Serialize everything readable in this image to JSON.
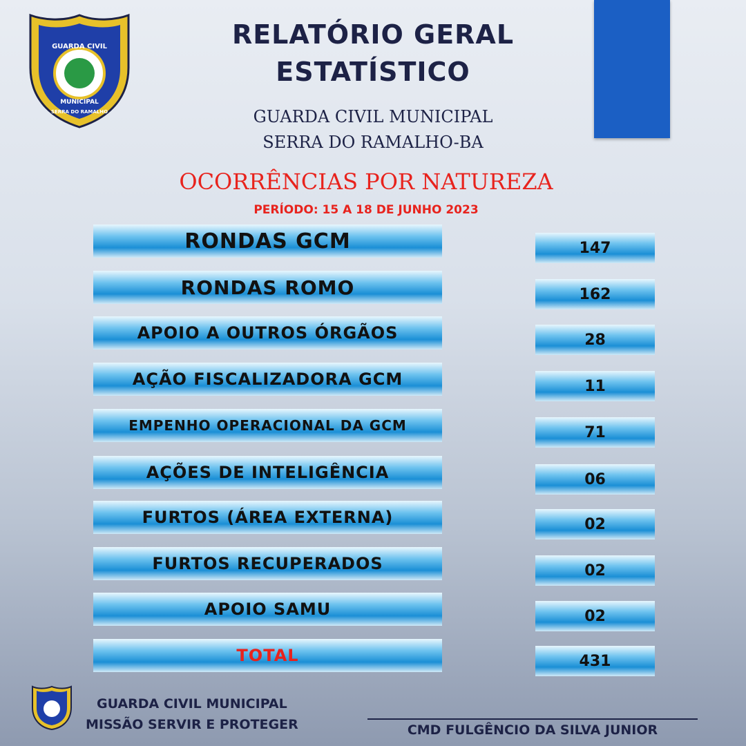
{
  "badge": {
    "line1": "GUARDA CIVIL",
    "line2": "MUNICIPAL",
    "line3": "SERRA DO RAMALHO"
  },
  "header": {
    "title_line1": "RELATÓRIO GERAL",
    "title_line2": "ESTATÍSTICO",
    "organization": "GUARDA CIVIL MUNICIPAL",
    "location": "SERRA DO RAMALHO-BA",
    "section": "OCORRÊNCIAS POR NATUREZA",
    "period": "PERÍODO: 15 A 18 DE JUNHO 2023"
  },
  "table": {
    "rows": [
      [
        "RONDAS GCM",
        "147"
      ],
      [
        "RONDAS ROMO",
        "162"
      ],
      [
        "APOIO A OUTROS ÓRGÃOS",
        "28"
      ],
      [
        "AÇÃO FISCALIZADORA GCM",
        "11"
      ],
      [
        "EMPENHO OPERACIONAL DA GCM",
        "71"
      ],
      [
        "AÇÕES DE INTELIGÊNCIA",
        "06"
      ],
      [
        "FURTOS (ÁREA EXTERNA)",
        "02"
      ],
      [
        "FURTOS RECUPERADOS",
        "02"
      ],
      [
        "APOIO SAMU",
        "02"
      ]
    ],
    "total": [
      "TOTAL",
      "431"
    ]
  },
  "footer": {
    "organization": "GUARDA CIVIL MUNICIPAL",
    "motto": "MISSÃO SERVIR E PROTEGER",
    "signature": "CMD FULGÊNCIO DA SILVA JUNIOR"
  }
}
